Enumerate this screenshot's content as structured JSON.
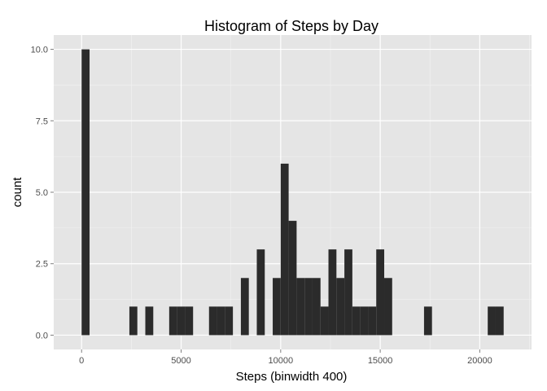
{
  "chart_data": {
    "type": "bar",
    "title": "Histogram of Steps by Day",
    "xlabel": "Steps (binwidth 400)",
    "ylabel": "count",
    "binwidth": 400,
    "xlim": [
      -1400,
      22600
    ],
    "ylim": [
      -0.5,
      10.5
    ],
    "x_ticks": [
      0,
      5000,
      10000,
      15000,
      20000
    ],
    "x_tick_labels": [
      "0",
      "5000",
      "10000",
      "15000",
      "20000"
    ],
    "y_ticks": [
      0,
      2.5,
      5,
      7.5,
      10
    ],
    "y_tick_labels": [
      "0.0",
      "2.5",
      "5.0",
      "7.5",
      "10.0"
    ],
    "grid": true,
    "legend": "none",
    "bins": [
      {
        "start": 0,
        "count": 10
      },
      {
        "start": 2400,
        "count": 1
      },
      {
        "start": 3200,
        "count": 1
      },
      {
        "start": 4400,
        "count": 1
      },
      {
        "start": 4800,
        "count": 1
      },
      {
        "start": 5200,
        "count": 1
      },
      {
        "start": 6400,
        "count": 1
      },
      {
        "start": 6800,
        "count": 1
      },
      {
        "start": 7200,
        "count": 1
      },
      {
        "start": 8000,
        "count": 2
      },
      {
        "start": 8800,
        "count": 3
      },
      {
        "start": 9600,
        "count": 2
      },
      {
        "start": 10000,
        "count": 6
      },
      {
        "start": 10400,
        "count": 4
      },
      {
        "start": 10800,
        "count": 2
      },
      {
        "start": 11200,
        "count": 2
      },
      {
        "start": 11600,
        "count": 2
      },
      {
        "start": 12000,
        "count": 1
      },
      {
        "start": 12400,
        "count": 3
      },
      {
        "start": 12800,
        "count": 2
      },
      {
        "start": 13200,
        "count": 3
      },
      {
        "start": 13600,
        "count": 1
      },
      {
        "start": 14000,
        "count": 1
      },
      {
        "start": 14400,
        "count": 1
      },
      {
        "start": 14800,
        "count": 3
      },
      {
        "start": 15200,
        "count": 2
      },
      {
        "start": 17200,
        "count": 1
      },
      {
        "start": 20400,
        "count": 1
      },
      {
        "start": 20800,
        "count": 1
      }
    ],
    "colors": {
      "panel": "#e5e5e5",
      "grid_major": "#ffffff",
      "grid_minor": "#f2f2f2",
      "bar": "#2b2b2b",
      "tick": "#7f7f7f"
    }
  }
}
